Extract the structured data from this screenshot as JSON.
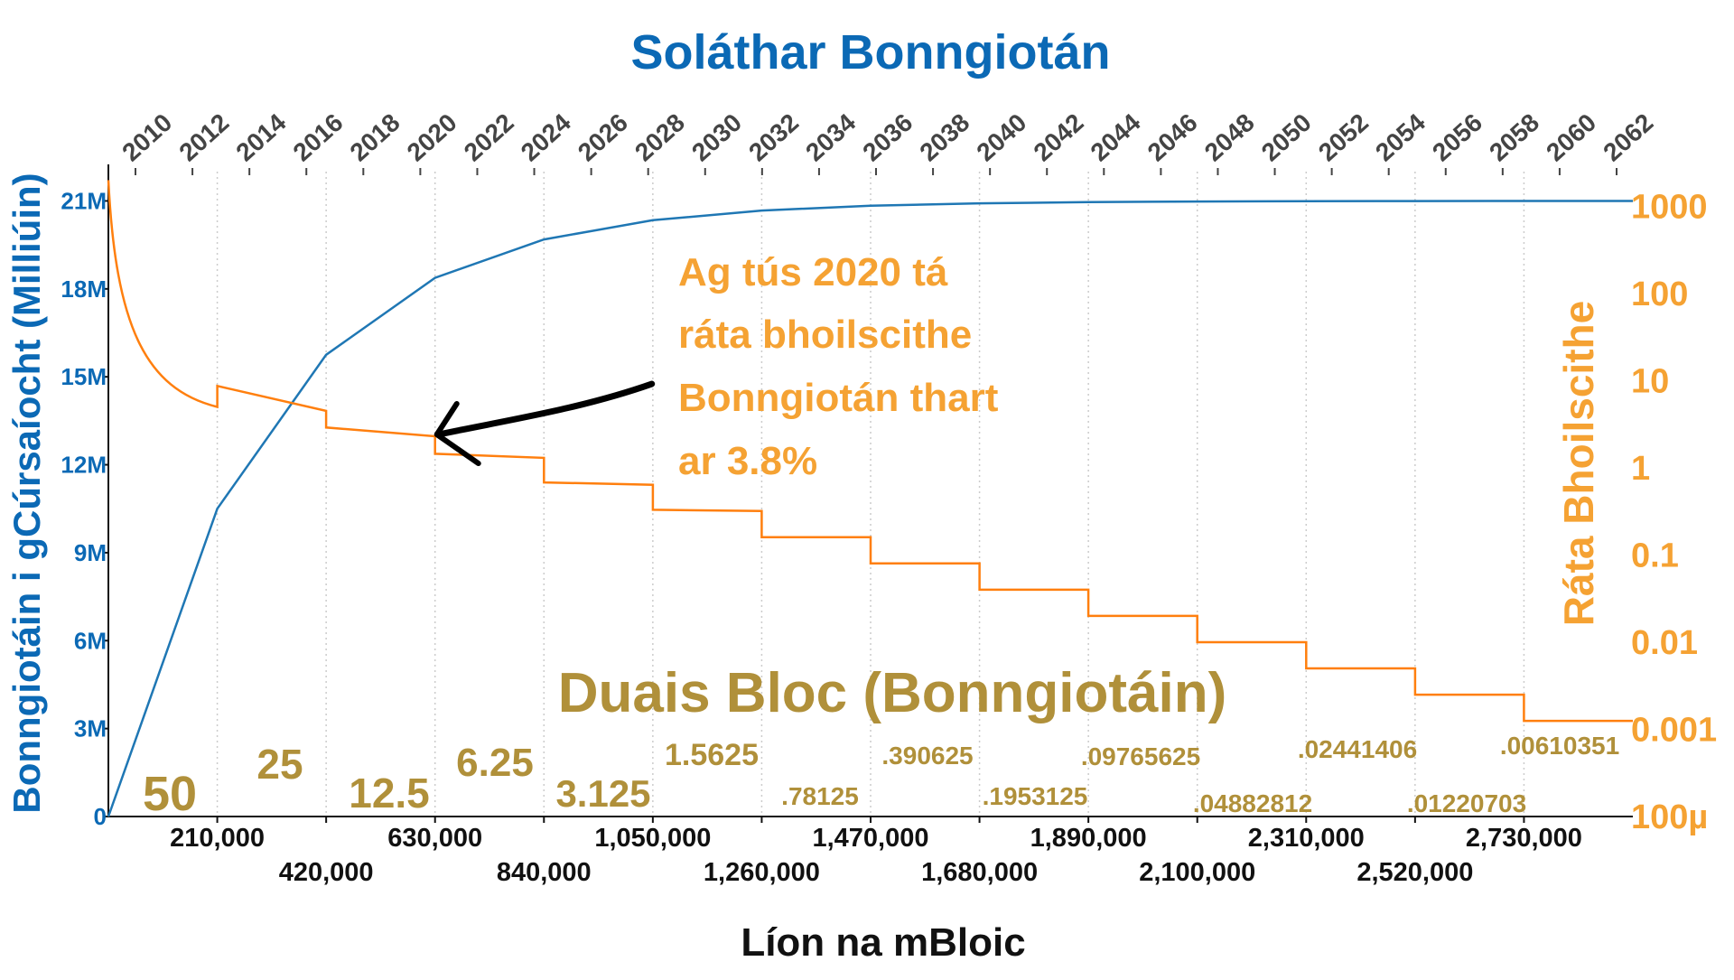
{
  "colors": {
    "supply": "#1f77b4",
    "inflation": "#ff7f0e",
    "title": "#0b69b5",
    "left_axis": "#0b69b5",
    "right_axis": "#f5a233",
    "reward": "#b0903a",
    "annotation_text": "#f5a233",
    "arrow": "#000000",
    "black": "#111111",
    "year_ticks": "#444444",
    "grid": "#cccccc"
  },
  "chart_data": {
    "type": "line",
    "title": "Soláthar Bonngiotán",
    "xlabel": "Líon na mBloic",
    "ylabel_left": "Bonngiotáin i gCúrsaíocht (Milliúin)",
    "ylabel_right": "Ráta Bhoilscithe",
    "xlim": [
      0,
      2940000
    ],
    "ylim_left": [
      0,
      22000000
    ],
    "ylim_right": [
      0.0001,
      2500
    ],
    "right_axis_scale": "log",
    "grid": "vertical",
    "x_ticks": [
      210000,
      420000,
      630000,
      840000,
      1050000,
      1260000,
      1470000,
      1680000,
      1890000,
      2100000,
      2310000,
      2520000,
      2730000
    ],
    "x_tick_labels": [
      "210,000",
      "420,000",
      "630,000",
      "840,000",
      "1,050,000",
      "1,260,000",
      "1,470,000",
      "1,680,000",
      "1,890,000",
      "2,100,000",
      "2,310,000",
      "2,520,000",
      "2,730,000"
    ],
    "y_left_ticks": [
      0,
      3000000,
      6000000,
      9000000,
      12000000,
      15000000,
      18000000,
      21000000
    ],
    "y_left_tick_labels": [
      "0",
      "3M",
      "6M",
      "9M",
      "12M",
      "15M",
      "18M",
      "21M"
    ],
    "y_right_ticks": [
      0.0001,
      0.001,
      0.01,
      0.1,
      1,
      10,
      100,
      1000
    ],
    "y_right_tick_labels": [
      "100µ",
      "0.001",
      "0.01",
      "0.1",
      "1",
      "10",
      "100",
      "1000"
    ],
    "top_axis_years": [
      "2010",
      "2012",
      "2014",
      "2016",
      "2018",
      "2020",
      "2022",
      "2024",
      "2026",
      "2028",
      "2030",
      "2032",
      "2034",
      "2036",
      "2038",
      "2040",
      "2042",
      "2044",
      "2046",
      "2048",
      "2050",
      "2052",
      "2054",
      "2056",
      "2058",
      "2060",
      "2062"
    ],
    "series": [
      {
        "name": "supply",
        "axis": "left",
        "x": [
          0,
          210000,
          420000,
          630000,
          840000,
          1050000,
          1260000,
          1470000,
          1680000,
          1890000,
          2100000,
          2310000,
          2520000,
          2730000,
          2940000
        ],
        "y": [
          0,
          10500000,
          15750000,
          18375000,
          19687500,
          20343750,
          20671875,
          20835938,
          20917969,
          20958984,
          20979492,
          20989746,
          20994873,
          20997437,
          20998718
        ]
      },
      {
        "name": "inflation",
        "axis": "right",
        "segments": [
          {
            "x0": 0,
            "x1": 210000,
            "y_start": 2000,
            "y_end": 5.0
          },
          {
            "x0": 210000,
            "x1": 420000,
            "y_start": 8.7,
            "y_end": 4.5
          },
          {
            "x0": 420000,
            "x1": 630000,
            "y_start": 2.9,
            "y_end": 2.3
          },
          {
            "x0": 630000,
            "x1": 840000,
            "y_start": 1.45,
            "y_end": 1.3
          },
          {
            "x0": 840000,
            "x1": 1050000,
            "y_start": 0.68,
            "y_end": 0.64
          },
          {
            "x0": 1050000,
            "x1": 1260000,
            "y_start": 0.33,
            "y_end": 0.32
          },
          {
            "x0": 1260000,
            "x1": 1470000,
            "y_start": 0.16,
            "y_end": 0.16
          },
          {
            "x0": 1470000,
            "x1": 1680000,
            "y_start": 0.08,
            "y_end": 0.08
          },
          {
            "x0": 1680000,
            "x1": 1890000,
            "y_start": 0.04,
            "y_end": 0.04
          },
          {
            "x0": 1890000,
            "x1": 2100000,
            "y_start": 0.02,
            "y_end": 0.02
          },
          {
            "x0": 2100000,
            "x1": 2310000,
            "y_start": 0.01,
            "y_end": 0.01
          },
          {
            "x0": 2310000,
            "x1": 2520000,
            "y_start": 0.005,
            "y_end": 0.005
          },
          {
            "x0": 2520000,
            "x1": 2730000,
            "y_start": 0.0025,
            "y_end": 0.0025
          },
          {
            "x0": 2730000,
            "x1": 2940000,
            "y_start": 0.00125,
            "y_end": 0.00125
          }
        ]
      }
    ],
    "block_rewards": {
      "title": "Duais Bloc (Bonngiotáin)",
      "labels": [
        "50",
        "25",
        "12.5",
        "6.25",
        "3.125",
        "1.5625",
        ".78125",
        ".390625",
        ".1953125",
        ".09765625",
        ".04882812",
        ".02441406",
        ".01220703",
        ".00610351"
      ]
    },
    "annotation": {
      "lines": [
        "Ag tús 2020 tá",
        "ráta bhoilscithe",
        "Bonngiotán thart",
        "ar 3.8%"
      ],
      "arrow_target_x": 630000,
      "arrow_target_y": 2.3
    }
  }
}
